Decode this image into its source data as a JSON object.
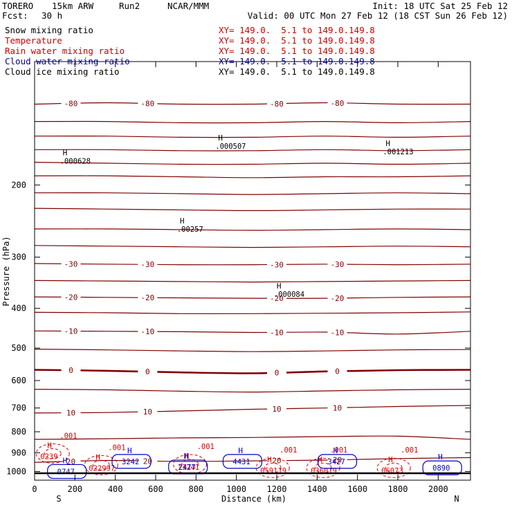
{
  "header": {
    "model": "TORERO",
    "resolution": "15km ARW",
    "run": "Run2",
    "org": "NCAR/MMM",
    "init": "Init: 18 UTC Sat 25 Feb 12",
    "fcst_label": "Fcst:",
    "fcst_value": "30 h",
    "valid": "Valid: 00 UTC Mon 27 Feb 12 (18 CST Sun 26 Feb 12)"
  },
  "fields": [
    {
      "name": "Snow mixing ratio",
      "xy": "XY= 149.0.  5.1 to 149.0.149.8",
      "color": "#000000"
    },
    {
      "name": "Temperature",
      "xy": "XY= 149.0.  5.1 to 149.0.149.8",
      "color": "#cc0000"
    },
    {
      "name": "Rain water mixing ratio",
      "xy": "XY= 149.0.  5.1 to 149.0.149.8",
      "color": "#cc0000"
    },
    {
      "name": "Cloud water mixing ratio",
      "xy": "XY= 149.0.  5.1 to 149.0.149.8",
      "color": "#000099"
    },
    {
      "name": "Cloud ice mixing ratio",
      "xy": "XY= 149.0.  5.1 to 149.0.149.8",
      "color": "#000000"
    }
  ],
  "colors": {
    "temperature": "#800000",
    "rain": "#dd0000",
    "cloud_water": "#0000cc",
    "snow": "#000000",
    "axes": "#000000",
    "background": "#ffffff"
  },
  "chart_data": {
    "type": "contour",
    "title": "",
    "xlabel": "Distance (km)",
    "ylabel": "Pressure (hPa)",
    "x_ticks": [
      0,
      200,
      400,
      600,
      800,
      1000,
      1200,
      1400,
      1600,
      1800,
      2000
    ],
    "y_ticks": [
      200,
      300,
      400,
      500,
      600,
      700,
      800,
      900,
      1000
    ],
    "y_scale": "log",
    "y_reversed": true,
    "x_range": [
      0,
      2160
    ],
    "y_range": [
      100,
      1050
    ],
    "x_end_labels": {
      "left": "S",
      "right": "N"
    },
    "temperature_contour_interval": 5,
    "temperature_isotherms": [
      {
        "level": -80,
        "label": "-80",
        "pressure": [
          127,
          126,
          127,
          127,
          126,
          127,
          127
        ]
      },
      {
        "level": -75,
        "pressure": [
          140,
          140,
          141,
          141,
          140,
          141,
          140
        ]
      },
      {
        "level": -70,
        "pressure": [
          152,
          152,
          153,
          153,
          152,
          153,
          152
        ]
      },
      {
        "level": -65,
        "pressure": [
          164,
          164,
          165,
          165,
          164,
          165,
          164
        ]
      },
      {
        "level": -60,
        "pressure": [
          176,
          177,
          178,
          178,
          177,
          178,
          177
        ]
      },
      {
        "level": -55,
        "pressure": [
          190,
          190,
          191,
          192,
          191,
          191,
          190
        ]
      },
      {
        "level": -50,
        "pressure": [
          209,
          209,
          210,
          211,
          210,
          209,
          210
        ]
      },
      {
        "level": -45,
        "pressure": [
          228,
          229,
          230,
          231,
          230,
          229,
          229
        ]
      },
      {
        "level": -40,
        "pressure": [
          256,
          256,
          257,
          258,
          257,
          256,
          257
        ]
      },
      {
        "level": -35,
        "pressure": [
          281,
          282,
          283,
          284,
          283,
          282,
          283
        ]
      },
      {
        "level": -30,
        "label": "-30",
        "pressure": [
          311,
          312,
          313,
          313,
          312,
          313,
          312
        ]
      },
      {
        "level": -25,
        "pressure": [
          342,
          343,
          344,
          345,
          344,
          343,
          342
        ]
      },
      {
        "level": -20,
        "label": "-20",
        "pressure": [
          375,
          376,
          377,
          378,
          378,
          376,
          375
        ]
      },
      {
        "level": -15,
        "pressure": [
          409,
          410,
          412,
          412,
          411,
          410,
          408
        ]
      },
      {
        "level": -10,
        "label": "-10",
        "pressure": [
          454,
          455,
          456,
          458,
          457,
          462,
          455
        ]
      },
      {
        "level": -5,
        "pressure": [
          503,
          505,
          508,
          510,
          508,
          505,
          504
        ]
      },
      {
        "level": 0,
        "label": "0",
        "pressure": [
          565,
          568,
          573,
          576,
          570,
          566,
          565
        ]
      },
      {
        "level": 5,
        "pressure": [
          630,
          632,
          637,
          640,
          636,
          632,
          630
        ]
      },
      {
        "level": 10,
        "label": "10",
        "pressure": [
          720,
          718,
          712,
          705,
          700,
          694,
          690
        ]
      },
      {
        "level": 15,
        "pressure": [
          835,
          832,
          828,
          826,
          822,
          820,
          835
        ]
      },
      {
        "level": 20,
        "label": "20",
        "pressure": [
          950,
          940,
          945,
          942,
          938,
          930,
          925
        ]
      }
    ],
    "isotherm_x": [
      0,
      360,
      720,
      1080,
      1440,
      1800,
      2160
    ],
    "snow_maxima": [
      {
        "x": 160,
        "p": 176,
        "label": ".000628"
      },
      {
        "x": 930,
        "p": 162,
        "label": ".000507"
      },
      {
        "x": 1760,
        "p": 167,
        "label": ".001213"
      },
      {
        "x": 740,
        "p": 258,
        "label": ".00257"
      },
      {
        "x": 1220,
        "p": 372,
        "label": ".000084"
      }
    ],
    "rain_water": {
      "contour_label": ".001",
      "maxima": [
        {
          "x": 90,
          "p": 904,
          "label": "0239"
        },
        {
          "x": 330,
          "p": 965,
          "label": "022997"
        },
        {
          "x": 770,
          "p": 960,
          "label": "13241"
        },
        {
          "x": 1180,
          "p": 980,
          "label": "059119"
        },
        {
          "x": 1430,
          "p": 980,
          "label": "036019"
        },
        {
          "x": 1780,
          "p": 980,
          "label": "06073"
        }
      ]
    },
    "cloud_water": {
      "maxima": [
        {
          "x": 160,
          "p": 1000,
          "label": "0747"
        },
        {
          "x": 480,
          "p": 945,
          "label": "3242"
        },
        {
          "x": 760,
          "p": 975,
          "label": "2477"
        },
        {
          "x": 1030,
          "p": 945,
          "label": "4431"
        },
        {
          "x": 1500,
          "p": 945,
          "label": "3427"
        },
        {
          "x": 2020,
          "p": 980,
          "label": "0890"
        }
      ]
    }
  }
}
